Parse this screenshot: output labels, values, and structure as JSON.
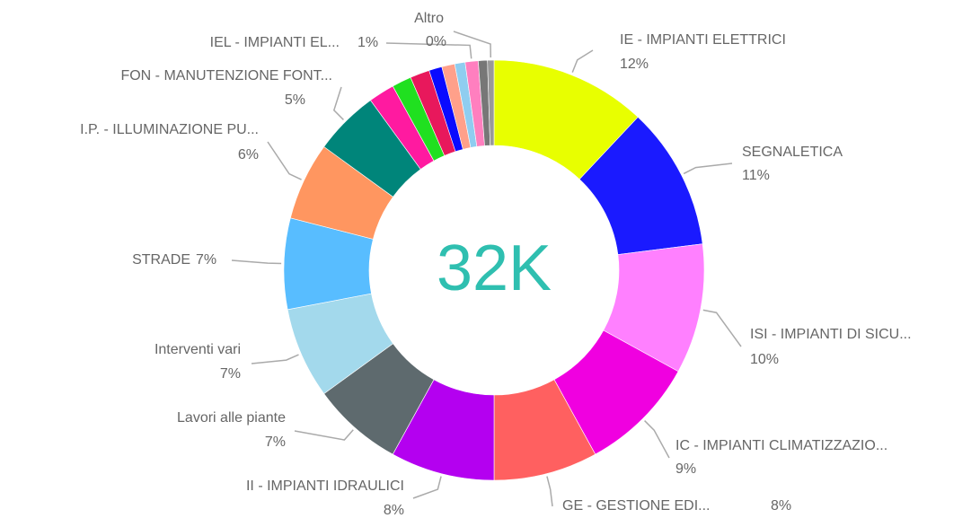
{
  "chart_data": {
    "type": "donut",
    "center_label": "32K",
    "center_color": "#2fbfb0",
    "categories": [
      "IE - IMPIANTI ELETTRICI",
      "SEGNALETICA",
      "ISI - IMPIANTI DI SICU...",
      "IC - IMPIANTI CLIMATIZZAZIO...",
      "GE - GESTIONE EDI...",
      "II - IMPIANTI IDRAULICI",
      "Lavori alle piante",
      "Interventi vari",
      "STRADE",
      "I.P. - ILLUMINAZIONE PU...",
      "FON - MANUTENZIONE FONT...",
      null,
      null,
      null,
      null,
      null,
      null,
      "IEL - IMPIANTI EL...",
      null,
      "Altro"
    ],
    "values": [
      12,
      11,
      10,
      9,
      8,
      8,
      7,
      7,
      7,
      6,
      5,
      2,
      1.5,
      1.5,
      1,
      1,
      0.8,
      1,
      0.7,
      0.5
    ],
    "value_labels": [
      "12%",
      "11%",
      "10%",
      "9%",
      "8%",
      "8%",
      "7%",
      "7%",
      "7%",
      "6%",
      "5%",
      null,
      null,
      null,
      null,
      null,
      null,
      "1%",
      null,
      "0%"
    ],
    "colors": [
      "#e8ff00",
      "#1a1aff",
      "#ff80ff",
      "#f000e0",
      "#ff6060",
      "#b400f0",
      "#5e6a6e",
      "#a3d9ec",
      "#58bdff",
      "#ff9660",
      "#00857a",
      "#ff1aa0",
      "#20e020",
      "#e8185c",
      "#0a0aff",
      "#ffa08a",
      "#8fcdf0",
      "#ff7fbf",
      "#777777",
      "#999999"
    ]
  }
}
